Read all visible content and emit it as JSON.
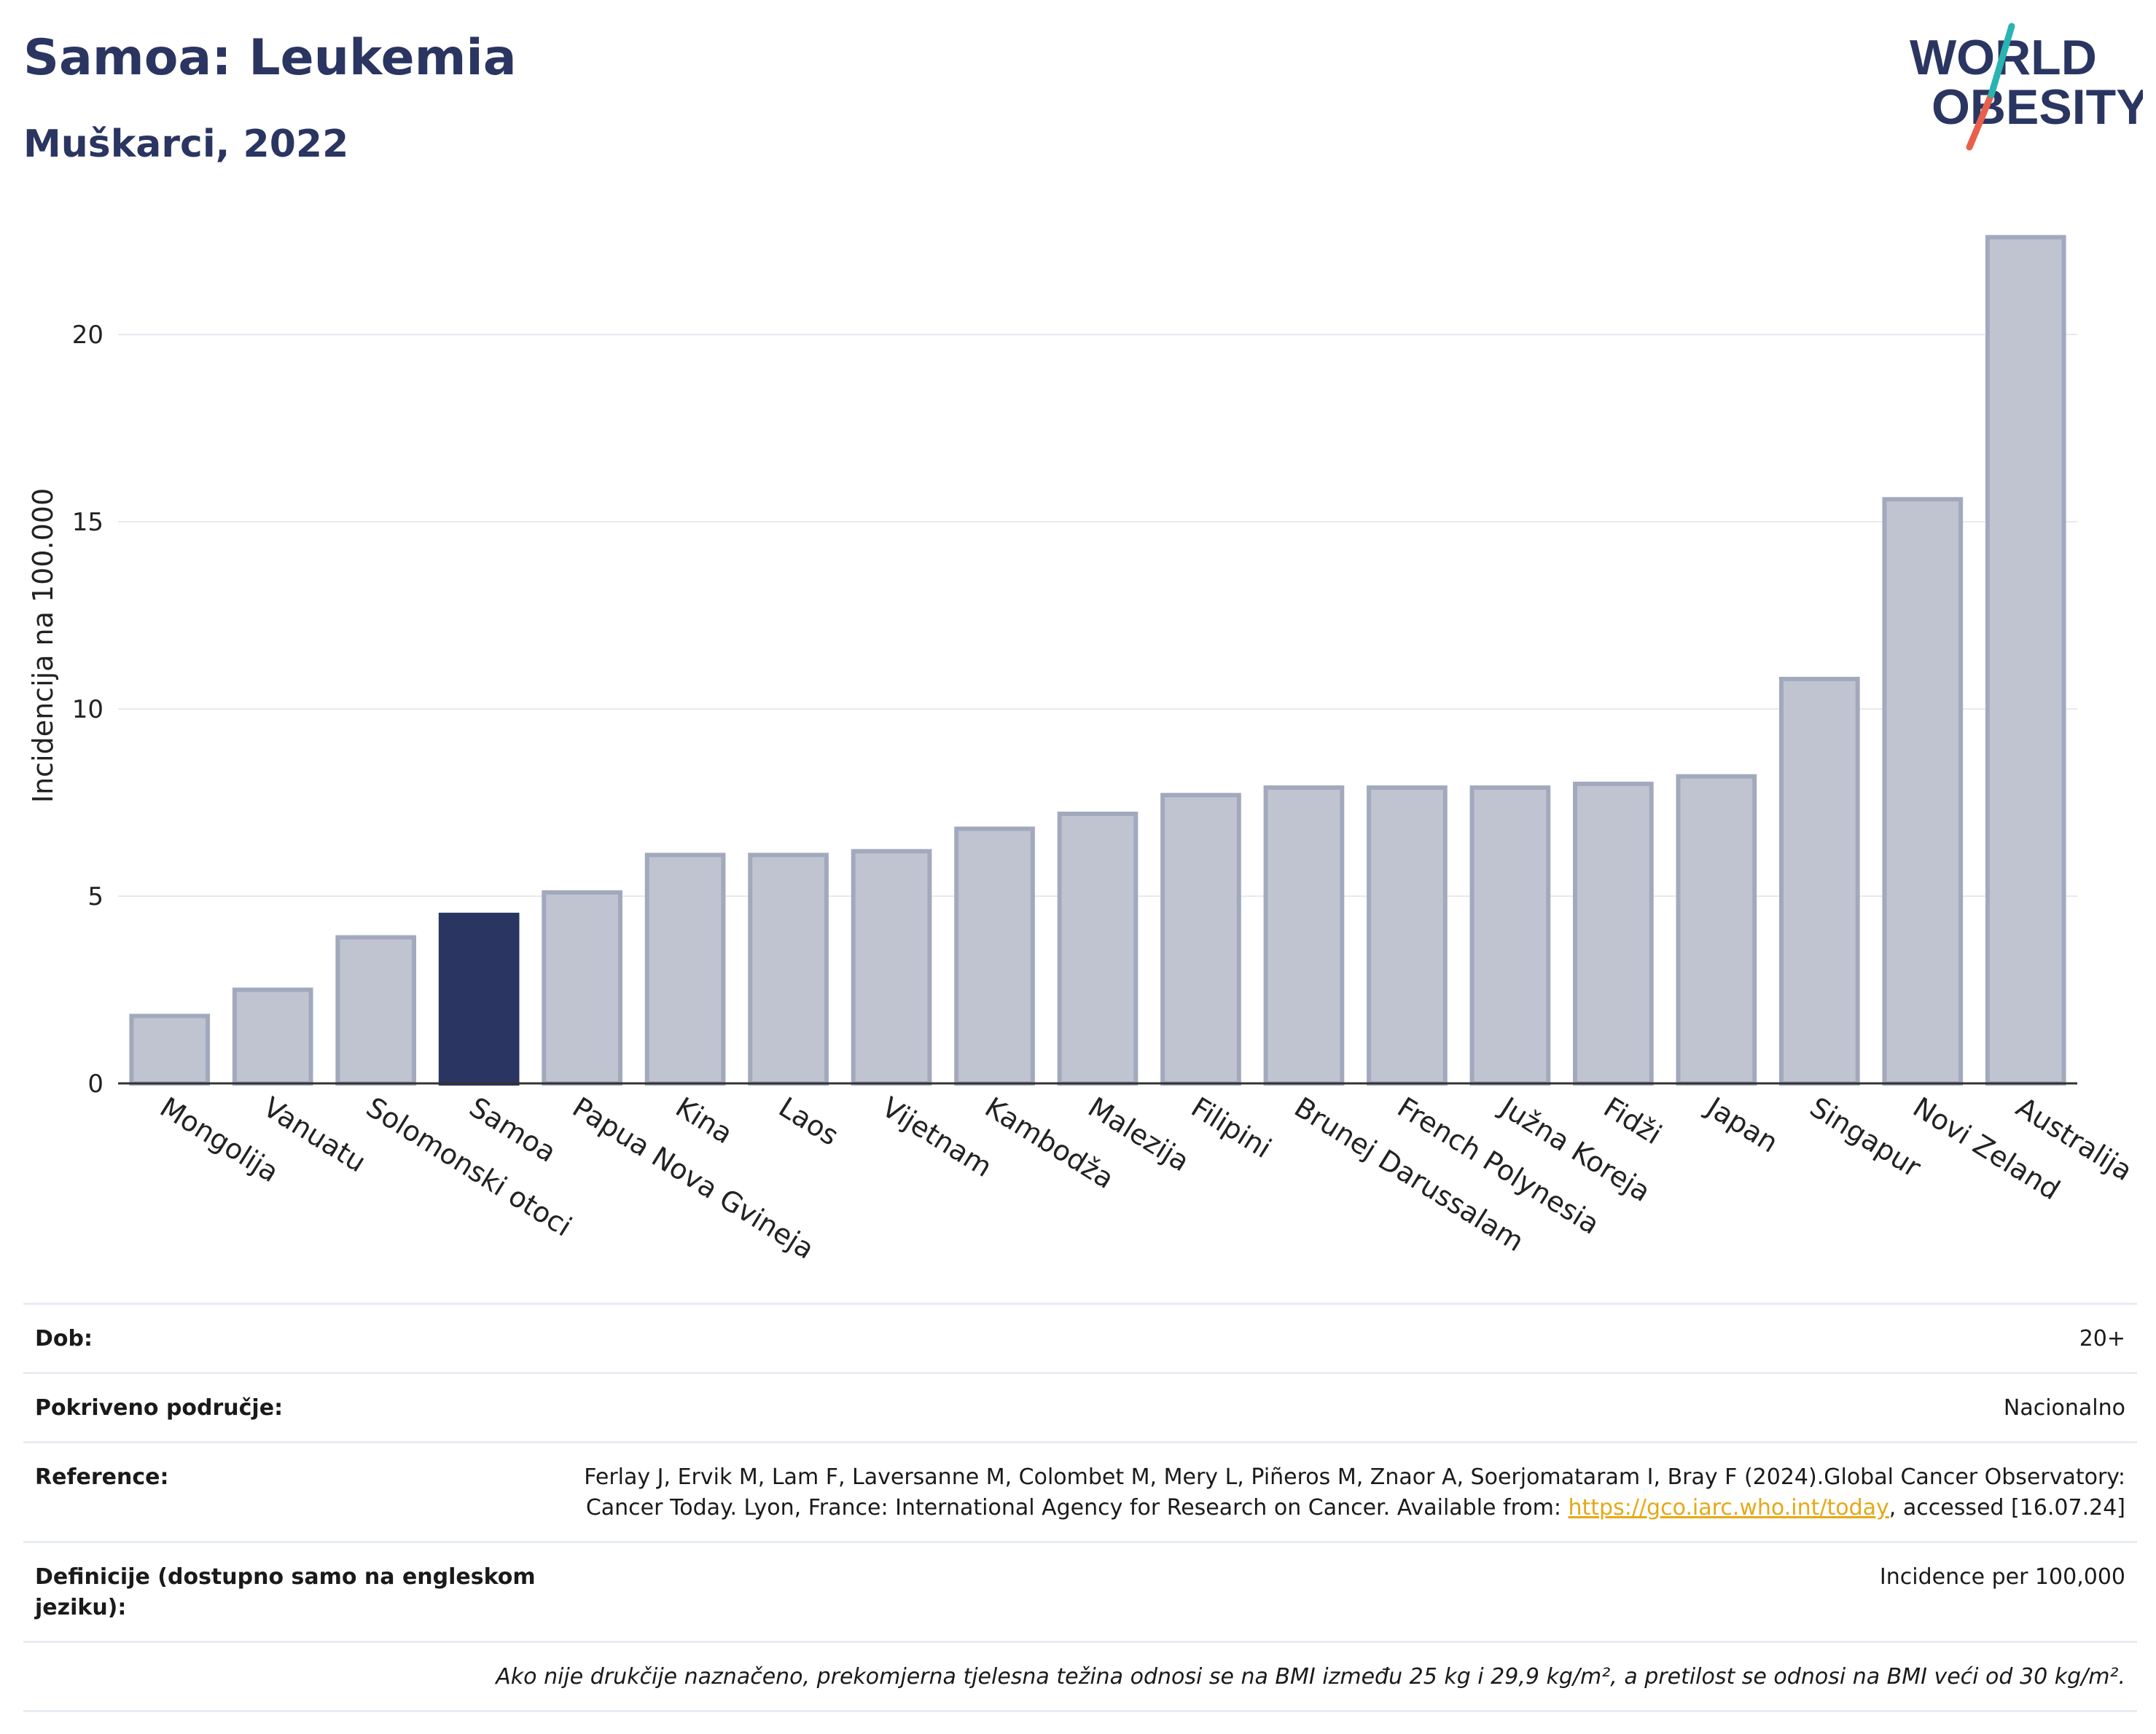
{
  "header": {
    "title": "Samoa: Leukemia",
    "subtitle": "Muškarci, 2022",
    "logo_line1": "WORLD",
    "logo_line2": "OBESITY"
  },
  "colors": {
    "highlight": "#2a3561",
    "bar": "#c0c4d1",
    "bar_stroke": "#a3a9bd",
    "title": "#2a3561",
    "link": "#e6a817",
    "logo_teal": "#2ab3b1",
    "logo_red": "#e8604c"
  },
  "chart_data": {
    "type": "bar",
    "title": "",
    "xlabel": "",
    "ylabel": "Incidencija na 100.000",
    "ylim": [
      0,
      23
    ],
    "yticks": [
      0,
      5,
      10,
      15,
      20
    ],
    "grid": true,
    "highlight": "Samoa",
    "categories": [
      "Mongolija",
      "Vanuatu",
      "Solomonski otoci",
      "Samoa",
      "Papua Nova Gvineja",
      "Kina",
      "Laos",
      "Vijetnam",
      "Kambodža",
      "Malezija",
      "Filipini",
      "Brunej Darussalam",
      "French Polynesia",
      "Južna Koreja",
      "Fidži",
      "Japan",
      "Singapur",
      "Novi Zeland",
      "Australija"
    ],
    "values": [
      1.8,
      2.5,
      3.9,
      4.5,
      5.1,
      6.1,
      6.1,
      6.2,
      6.8,
      7.2,
      7.7,
      7.9,
      7.9,
      7.9,
      8.0,
      8.2,
      10.8,
      15.6,
      22.6
    ]
  },
  "meta": {
    "rows": [
      {
        "key": "Dob:",
        "value": "20+"
      },
      {
        "key": "Pokriveno područje:",
        "value": "Nacionalno"
      },
      {
        "key": "Reference:",
        "value_before": "Ferlay J, Ervik M, Lam F, Laversanne M, Colombet M, Mery L, Piñeros M, Znaor A, Soerjomataram I, Bray F (2024).Global Cancer Observatory: Cancer Today. Lyon, France: International Agency for Research on Cancer. Available from: ",
        "link": "https://gco.iarc.who.int/today",
        "value_after": ", accessed [16.07.24]"
      },
      {
        "key": "Definicije (dostupno samo na engleskom jeziku):",
        "value": "Incidence per 100,000"
      }
    ],
    "note": "Ako nije drukčije naznačeno, prekomjerna tjelesna težina odnosi se na BMI između 25 kg i 29,9 kg/m², a pretilost se odnosi na BMI veći od 30 kg/m²."
  }
}
